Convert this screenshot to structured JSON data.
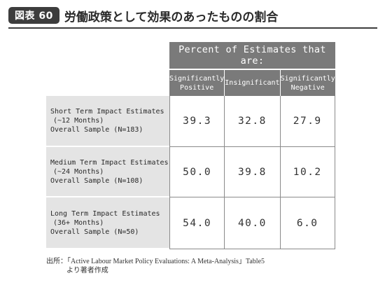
{
  "header": {
    "badge": "図表 60",
    "title": "労働政策として効果のあったものの割合"
  },
  "table": {
    "group_header": "Percent of Estimates that are:",
    "columns": [
      [
        "Significantly",
        "Positive"
      ],
      [
        "Insignificant"
      ],
      [
        "Significantly",
        "Negative"
      ]
    ],
    "rows": [
      {
        "label": [
          "Short Term Impact Estimates",
          "(~12 Months)",
          "Overall Sample (N=183)"
        ],
        "values": [
          "39.3",
          "32.8",
          "27.9"
        ]
      },
      {
        "label": [
          "Medium Term Impact Estimates",
          "(~24 Months)",
          "Overall Sample (N=108)"
        ],
        "values": [
          "50.0",
          "39.8",
          "10.2"
        ]
      },
      {
        "label": [
          "Long Term Impact Estimates",
          "(36+ Months)",
          "Overall Sample (N=50)"
        ],
        "values": [
          "54.0",
          "40.0",
          "6.0"
        ]
      }
    ]
  },
  "source": {
    "line1": "出所：「Active Labour Market Policy Evaluations: A Meta-Analysis」Table5",
    "line2": "より著者作成"
  }
}
